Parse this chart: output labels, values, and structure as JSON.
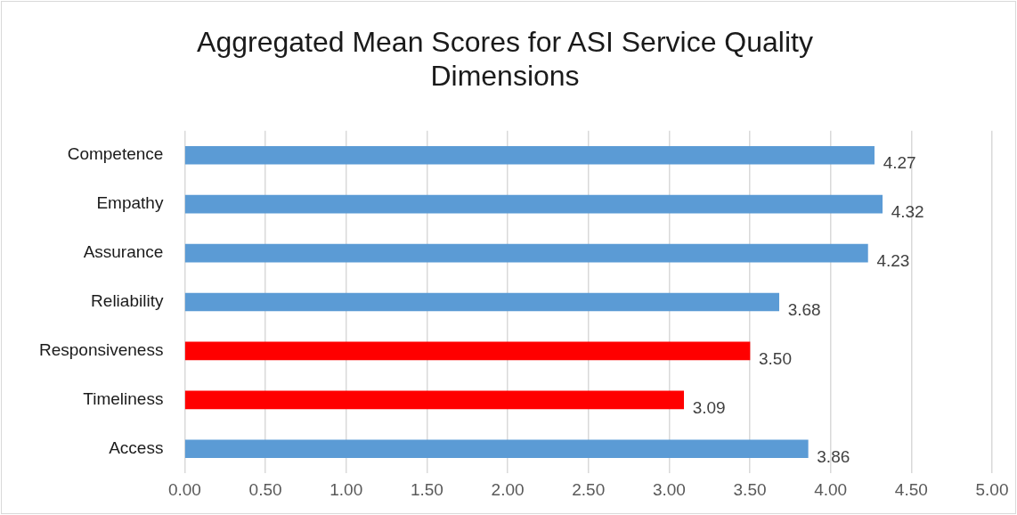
{
  "chart_data": {
    "type": "bar",
    "orientation": "horizontal",
    "title": "Aggregated Mean Scores for ASI Service Quality Dimensions",
    "categories": [
      "Competence",
      "Empathy",
      "Assurance",
      "Reliability",
      "Responsiveness",
      "Timeliness",
      "Access"
    ],
    "values": [
      4.27,
      4.32,
      4.23,
      3.68,
      3.5,
      3.09,
      3.86
    ],
    "colors": [
      "#5b9bd5",
      "#5b9bd5",
      "#5b9bd5",
      "#5b9bd5",
      "#ff0000",
      "#ff0000",
      "#5b9bd5"
    ],
    "value_labels": [
      "4.27",
      "4.32",
      "4.23",
      "3.68",
      "3.50",
      "3.09",
      "3.86"
    ],
    "xlim": [
      0,
      5
    ],
    "xticks": [
      {
        "value": 0,
        "label": "0.00"
      },
      {
        "value": 0.5,
        "label": "0.50"
      },
      {
        "value": 1,
        "label": "1.00"
      },
      {
        "value": 1.5,
        "label": "1.50"
      },
      {
        "value": 2,
        "label": "2.00"
      },
      {
        "value": 2.5,
        "label": "2.50"
      },
      {
        "value": 3,
        "label": "3.00"
      },
      {
        "value": 3.5,
        "label": "3.50"
      },
      {
        "value": 4,
        "label": "4.00"
      },
      {
        "value": 4.5,
        "label": "4.50"
      },
      {
        "value": 5,
        "label": "5.00"
      }
    ],
    "grid": "x",
    "legend": false
  }
}
